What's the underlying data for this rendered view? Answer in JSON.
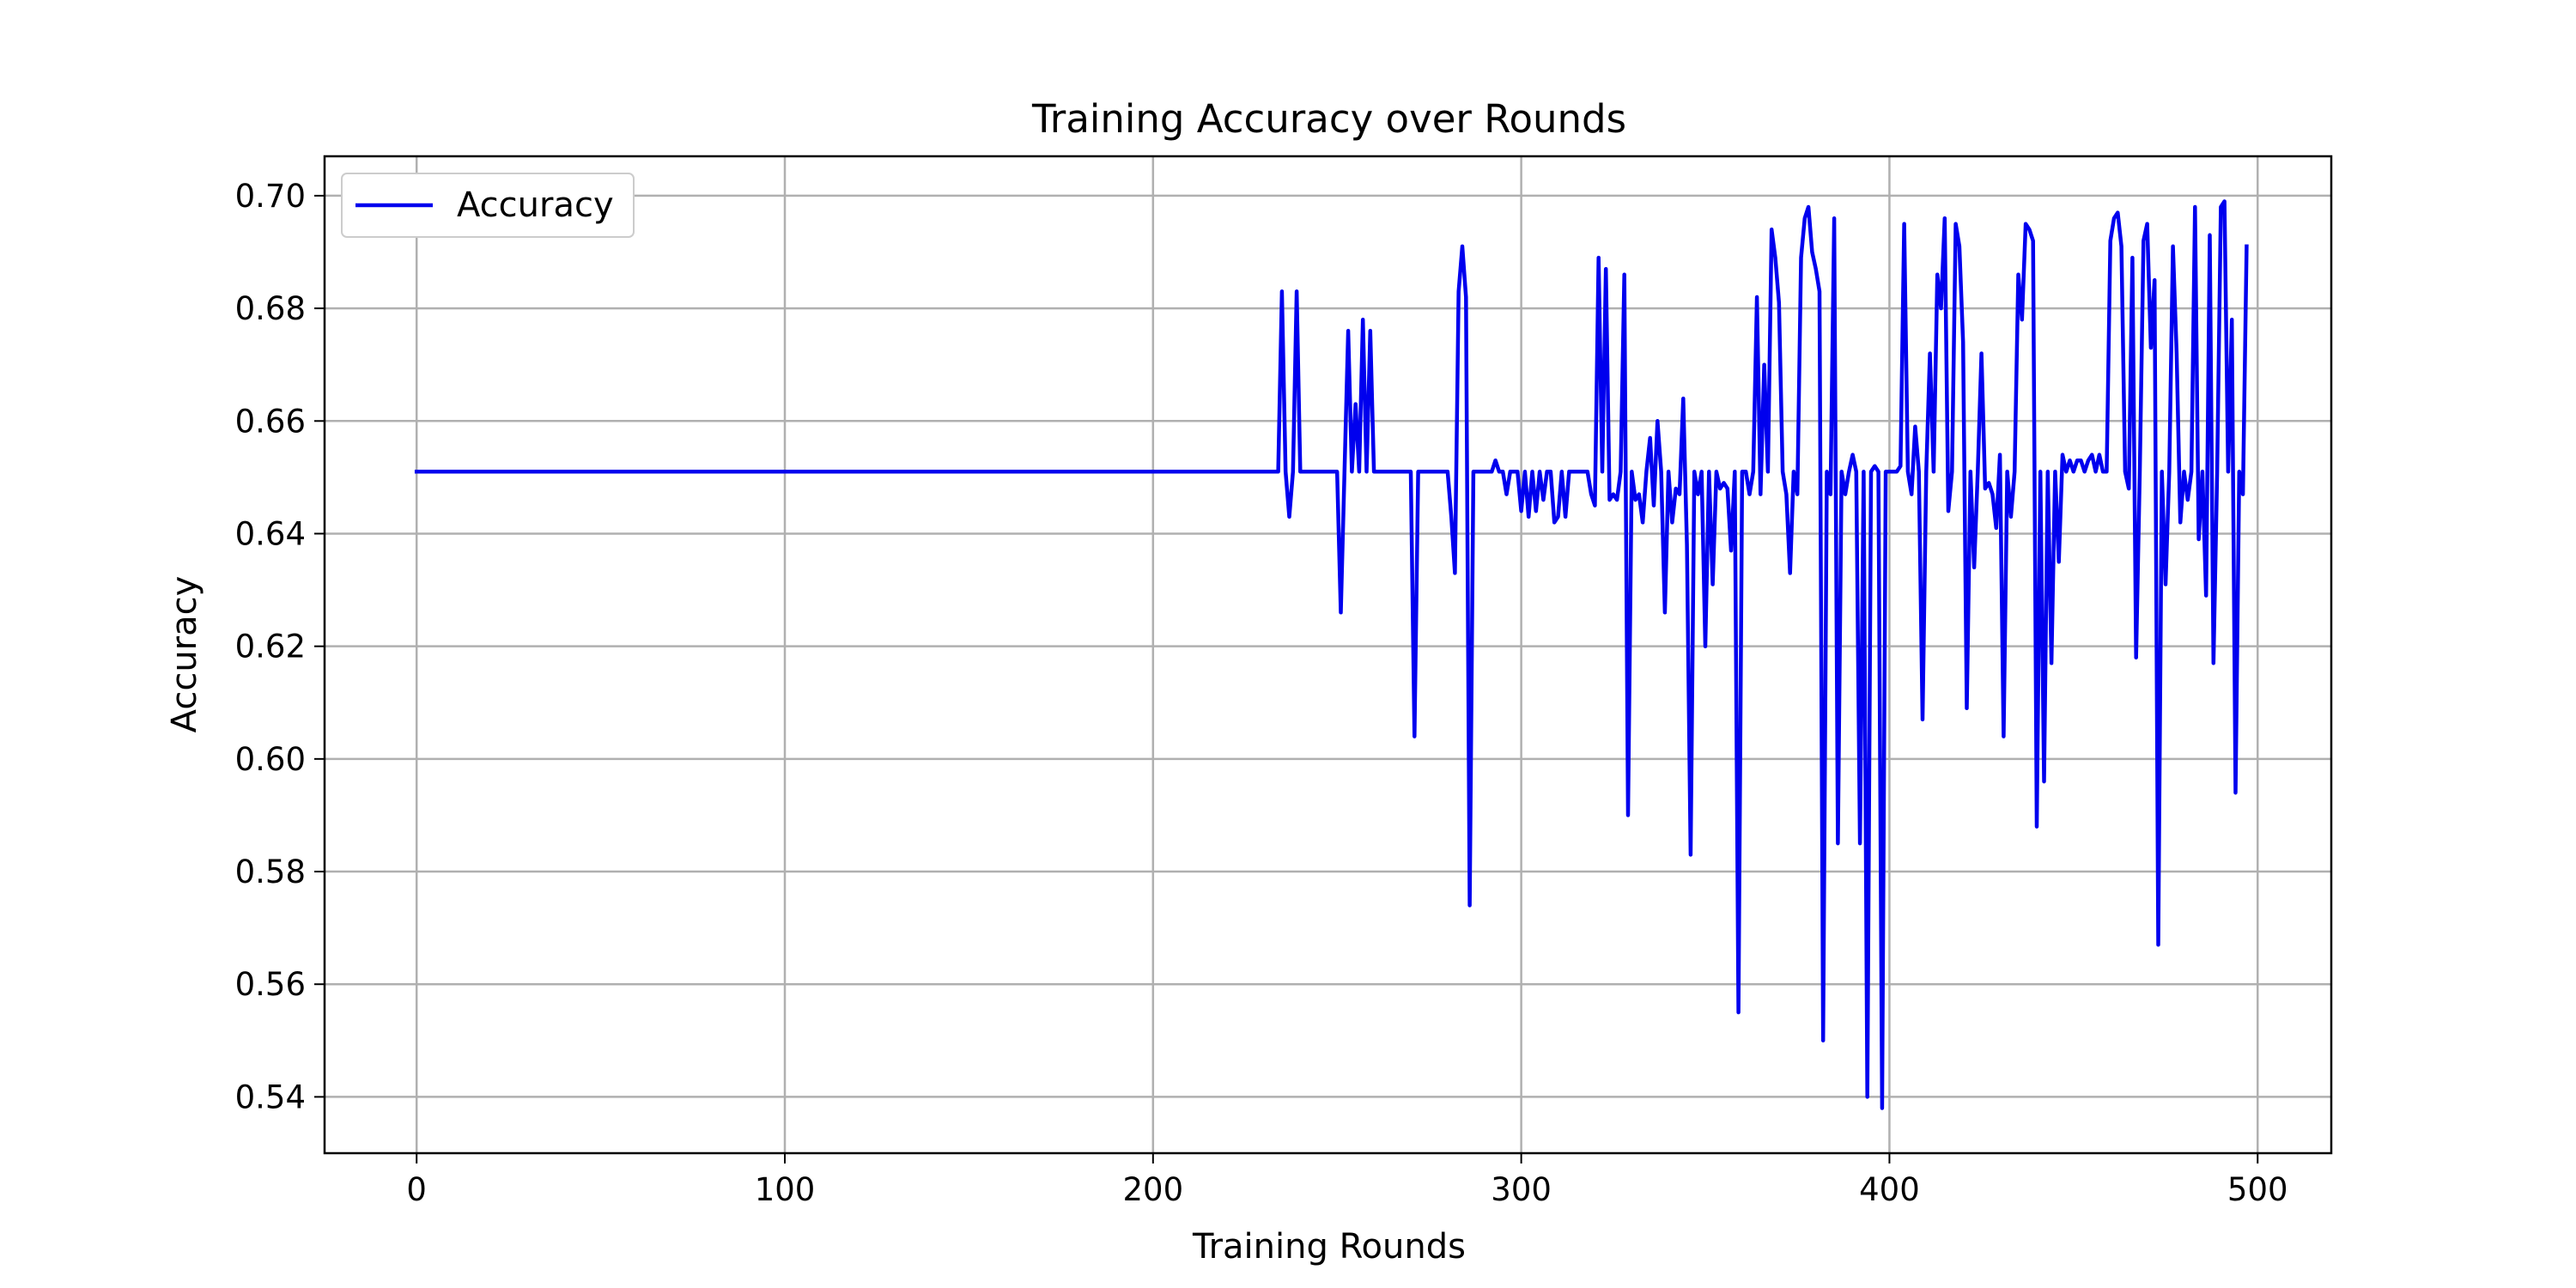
{
  "chart_data": {
    "type": "line",
    "title": "Training Accuracy over Rounds",
    "xlabel": "Training Rounds",
    "ylabel": "Accuracy",
    "xlim": [
      -25,
      520
    ],
    "ylim": [
      0.53,
      0.707
    ],
    "xticks": [
      0,
      100,
      200,
      300,
      400,
      500
    ],
    "yticks": [
      0.54,
      0.56,
      0.58,
      0.6,
      0.62,
      0.64,
      0.66,
      0.68,
      0.7
    ],
    "ytick_labels": [
      "0.54",
      "0.56",
      "0.58",
      "0.60",
      "0.62",
      "0.64",
      "0.66",
      "0.68",
      "0.70"
    ],
    "grid": true,
    "legend": {
      "position": "upper-left",
      "entries": [
        "Accuracy"
      ]
    },
    "colors": {
      "line": "#0000ee",
      "grid": "#b0b0b0",
      "axes": "#000000"
    },
    "series": [
      {
        "name": "Accuracy",
        "x": [
          0,
          234,
          235,
          236,
          237,
          238,
          239,
          240,
          250,
          251,
          252,
          253,
          254,
          255,
          256,
          257,
          258,
          259,
          260,
          261,
          262,
          270,
          271,
          272,
          280,
          281,
          282,
          283,
          284,
          285,
          286,
          287,
          290,
          291,
          292,
          293,
          294,
          295,
          296,
          297,
          298,
          299,
          300,
          301,
          302,
          303,
          304,
          305,
          306,
          307,
          308,
          309,
          310,
          311,
          312,
          313,
          314,
          318,
          319,
          320,
          321,
          322,
          323,
          324,
          325,
          326,
          327,
          328,
          329,
          330,
          331,
          332,
          333,
          334,
          335,
          336,
          337,
          338,
          339,
          340,
          341,
          342,
          343,
          344,
          345,
          346,
          347,
          348,
          349,
          350,
          351,
          352,
          353,
          354,
          355,
          356,
          357,
          358,
          359,
          360,
          361,
          362,
          363,
          364,
          365,
          366,
          367,
          368,
          369,
          370,
          371,
          372,
          373,
          374,
          375,
          376,
          377,
          378,
          379,
          380,
          381,
          382,
          383,
          384,
          385,
          386,
          387,
          388,
          389,
          390,
          391,
          392,
          393,
          394,
          395,
          396,
          397,
          398,
          399,
          400,
          401,
          402,
          403,
          404,
          405,
          406,
          407,
          408,
          409,
          410,
          411,
          412,
          413,
          414,
          415,
          416,
          417,
          418,
          419,
          420,
          421,
          422,
          423,
          424,
          425,
          426,
          427,
          428,
          429,
          430,
          431,
          432,
          433,
          434,
          435,
          436,
          437,
          438,
          439,
          440,
          441,
          442,
          443,
          444,
          445,
          446,
          447,
          448,
          449,
          450,
          451,
          452,
          453,
          454,
          455,
          456,
          457,
          458,
          459,
          460,
          461,
          462,
          463,
          464,
          465,
          466,
          467,
          468,
          469,
          470,
          471,
          472,
          473,
          474,
          475,
          476,
          477,
          478,
          479,
          480,
          481,
          482,
          483,
          484,
          485,
          486,
          487,
          488,
          489,
          490,
          491,
          492,
          493,
          494,
          495,
          496,
          497
        ],
        "values": [
          0.651,
          0.651,
          0.683,
          0.651,
          0.643,
          0.651,
          0.683,
          0.651,
          0.651,
          0.626,
          0.651,
          0.676,
          0.651,
          0.663,
          0.651,
          0.678,
          0.651,
          0.676,
          0.651,
          0.651,
          0.651,
          0.651,
          0.604,
          0.651,
          0.651,
          0.643,
          0.633,
          0.683,
          0.691,
          0.682,
          0.574,
          0.651,
          0.651,
          0.651,
          0.651,
          0.653,
          0.651,
          0.651,
          0.647,
          0.651,
          0.651,
          0.651,
          0.644,
          0.651,
          0.643,
          0.651,
          0.644,
          0.651,
          0.646,
          0.651,
          0.651,
          0.642,
          0.643,
          0.651,
          0.643,
          0.651,
          0.651,
          0.651,
          0.647,
          0.645,
          0.689,
          0.651,
          0.687,
          0.646,
          0.647,
          0.646,
          0.651,
          0.686,
          0.59,
          0.651,
          0.646,
          0.647,
          0.642,
          0.651,
          0.657,
          0.645,
          0.66,
          0.651,
          0.626,
          0.651,
          0.642,
          0.648,
          0.647,
          0.664,
          0.638,
          0.583,
          0.651,
          0.647,
          0.651,
          0.62,
          0.651,
          0.631,
          0.651,
          0.648,
          0.649,
          0.648,
          0.637,
          0.651,
          0.555,
          0.651,
          0.651,
          0.647,
          0.651,
          0.682,
          0.647,
          0.67,
          0.651,
          0.694,
          0.689,
          0.681,
          0.651,
          0.647,
          0.633,
          0.651,
          0.647,
          0.689,
          0.696,
          0.698,
          0.69,
          0.687,
          0.683,
          0.55,
          0.651,
          0.647,
          0.696,
          0.585,
          0.651,
          0.647,
          0.651,
          0.654,
          0.651,
          0.585,
          0.651,
          0.54,
          0.651,
          0.652,
          0.651,
          0.538,
          0.651,
          0.651,
          0.651,
          0.651,
          0.652,
          0.695,
          0.651,
          0.647,
          0.659,
          0.651,
          0.607,
          0.651,
          0.672,
          0.651,
          0.686,
          0.68,
          0.696,
          0.644,
          0.651,
          0.695,
          0.691,
          0.674,
          0.609,
          0.651,
          0.634,
          0.651,
          0.672,
          0.648,
          0.649,
          0.647,
          0.641,
          0.654,
          0.604,
          0.651,
          0.643,
          0.651,
          0.686,
          0.678,
          0.695,
          0.694,
          0.692,
          0.588,
          0.651,
          0.596,
          0.651,
          0.617,
          0.651,
          0.635,
          0.654,
          0.651,
          0.653,
          0.651,
          0.653,
          0.653,
          0.651,
          0.653,
          0.654,
          0.651,
          0.654,
          0.651,
          0.651,
          0.692,
          0.696,
          0.697,
          0.691,
          0.651,
          0.648,
          0.689,
          0.618,
          0.651,
          0.692,
          0.695,
          0.673,
          0.685,
          0.567,
          0.651,
          0.631,
          0.651,
          0.691,
          0.672,
          0.642,
          0.651,
          0.646,
          0.651,
          0.698,
          0.639,
          0.651,
          0.629,
          0.693,
          0.617,
          0.651,
          0.698,
          0.699,
          0.651,
          0.678,
          0.594,
          0.651,
          0.647,
          0.691
        ]
      }
    ]
  }
}
